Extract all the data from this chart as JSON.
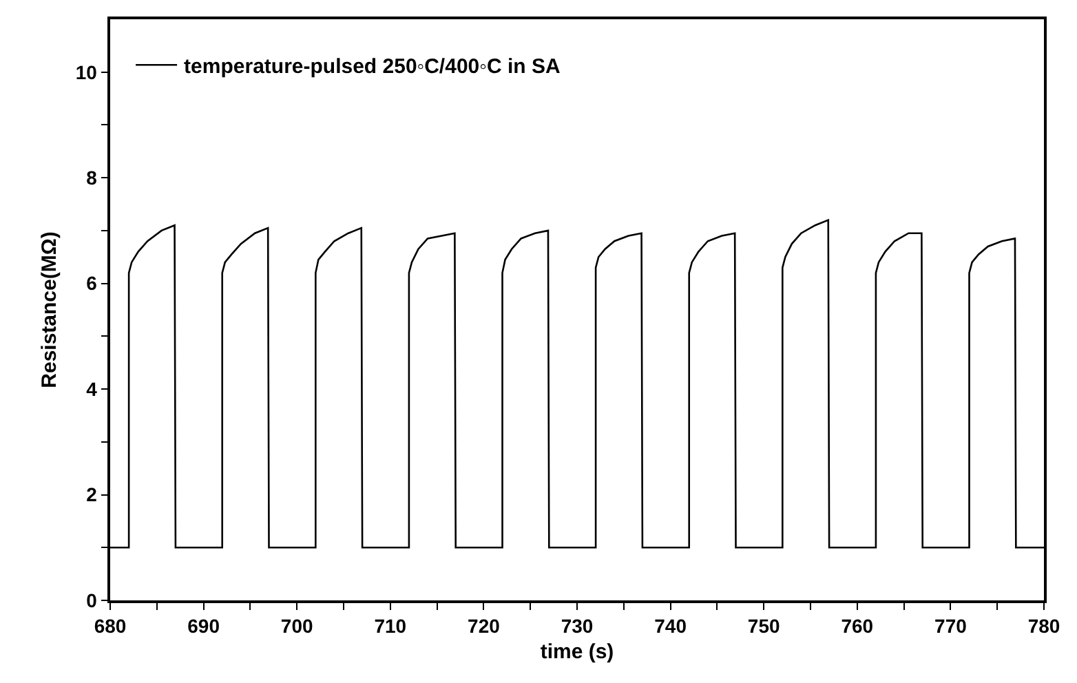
{
  "chart_data": {
    "type": "line",
    "xlabel": "time (s)",
    "ylabel": "Resistance(MΩ)",
    "x": [
      680,
      682,
      682,
      682.3,
      683,
      684,
      685.5,
      686.9,
      687,
      692,
      692,
      692.3,
      693,
      694,
      695.5,
      696.9,
      697,
      702,
      702,
      702.3,
      703,
      704,
      705.5,
      706.9,
      707,
      712,
      712,
      712.3,
      713,
      714,
      715.5,
      716.9,
      717,
      722,
      722,
      722.3,
      723,
      724,
      725.5,
      726.9,
      727,
      732,
      732,
      732.3,
      733,
      734,
      735.5,
      736.9,
      737,
      742,
      742,
      742.3,
      743,
      744,
      745.5,
      746.9,
      747,
      752,
      752,
      752.3,
      753,
      754,
      755.5,
      756.9,
      757,
      762,
      762,
      762.3,
      763,
      764,
      765.5,
      766.9,
      767,
      772,
      772,
      772.3,
      773,
      774,
      775.5,
      776.9,
      777,
      780
    ],
    "series": [
      {
        "name": "temperature-pulsed 250◦C/400◦C in SA",
        "color": "#000000",
        "values": [
          1.0,
          1.0,
          6.2,
          6.4,
          6.6,
          6.8,
          7.0,
          7.1,
          1.0,
          1.0,
          6.2,
          6.4,
          6.55,
          6.75,
          6.95,
          7.05,
          1.0,
          1.0,
          6.2,
          6.45,
          6.6,
          6.8,
          6.95,
          7.05,
          1.0,
          1.0,
          6.2,
          6.4,
          6.65,
          6.85,
          6.9,
          6.95,
          1.0,
          1.0,
          6.2,
          6.45,
          6.65,
          6.85,
          6.95,
          7.0,
          1.0,
          1.0,
          6.3,
          6.5,
          6.65,
          6.8,
          6.9,
          6.95,
          1.0,
          1.0,
          6.2,
          6.4,
          6.6,
          6.8,
          6.9,
          6.95,
          1.0,
          1.0,
          6.3,
          6.5,
          6.75,
          6.95,
          7.1,
          7.2,
          1.0,
          1.0,
          6.2,
          6.4,
          6.6,
          6.8,
          6.95,
          6.95,
          1.0,
          1.0,
          6.2,
          6.4,
          6.55,
          6.7,
          6.8,
          6.85,
          1.0,
          1.0
        ]
      }
    ],
    "xlim": [
      680,
      780
    ],
    "xticks": [
      680,
      {
        "value": 685,
        "label": null
      },
      690,
      {
        "value": 695,
        "label": null
      },
      700,
      {
        "value": 705,
        "label": null
      },
      710,
      {
        "value": 715,
        "label": null
      },
      720,
      {
        "value": 725,
        "label": null
      },
      730,
      {
        "value": 735,
        "label": null
      },
      740,
      {
        "value": 745,
        "label": null
      },
      750,
      {
        "value": 755,
        "label": null
      },
      760,
      {
        "value": 765,
        "label": null
      },
      770,
      {
        "value": 775,
        "label": null
      },
      780
    ],
    "ylim": [
      0,
      11
    ],
    "yticks": [
      0,
      {
        "value": 1,
        "label": null
      },
      2,
      {
        "value": 3,
        "label": null
      },
      4,
      {
        "value": 5,
        "label": null
      },
      6,
      {
        "value": 7,
        "label": null
      },
      8,
      {
        "value": 9,
        "label": null
      },
      10
    ],
    "legend": "top left",
    "marker": "none",
    "line_style": "solid"
  }
}
